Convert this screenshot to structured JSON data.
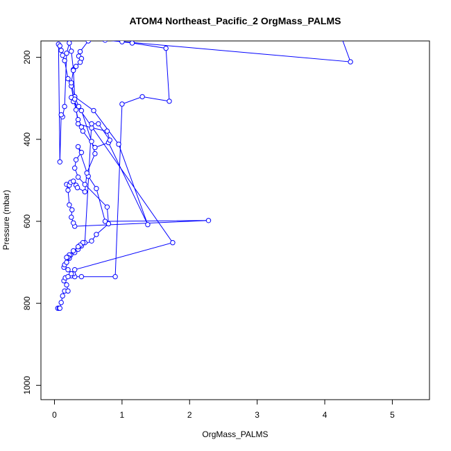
{
  "chart_data": {
    "type": "line",
    "title": "ATOM4 Northeast_Pacific_2 OrgMass_PALMS",
    "xlabel": "OrgMass_PALMS",
    "ylabel": "Pressure (mbar)",
    "xlim": [
      -0.2,
      5.55
    ],
    "ylim": [
      1035,
      160
    ],
    "y_reversed": true,
    "x_ticks": [
      0,
      1,
      2,
      3,
      4,
      5
    ],
    "y_ticks": [
      200,
      400,
      600,
      800,
      1000
    ],
    "grid": false,
    "legend": "none",
    "series": [
      {
        "color": "#0000ff",
        "marker": "open-circle",
        "x": [
          0.05,
          0.07,
          0.08,
          0.1,
          0.12,
          0.15,
          0.2,
          0.18,
          0.14,
          0.16,
          0.25,
          0.3,
          0.28,
          0.2,
          0.14,
          0.15,
          0.18,
          0.22,
          0.24,
          0.3,
          0.35,
          0.4,
          0.55,
          0.62,
          0.8,
          0.78,
          0.45,
          0.35,
          0.3,
          0.32,
          0.4,
          0.35,
          0.5,
          0.62,
          0.75,
          2.28,
          0.3,
          0.28,
          0.25,
          0.26,
          0.22,
          0.2,
          0.18,
          0.22,
          0.24,
          0.28,
          0.32,
          0.34,
          0.45,
          0.48,
          0.6,
          0.55,
          0.4,
          0.36,
          0.3,
          0.28,
          0.25,
          0.22,
          0.18,
          0.15,
          0.12,
          0.1,
          0.08,
          0.06,
          0.08,
          0.1,
          0.12,
          0.15,
          0.2,
          0.25,
          0.28,
          0.32,
          0.35,
          0.4,
          0.42,
          0.6,
          0.8,
          1.38,
          0.95,
          0.58,
          0.3,
          0.28,
          0.25,
          1.75,
          0.3,
          0.25,
          0.2,
          0.4,
          0.9,
          1.0,
          1.3,
          1.7,
          1.65,
          1.15,
          1.0,
          0.75,
          4.38,
          4.25,
          0.7,
          0.5,
          0.38,
          0.36,
          0.4,
          0.38,
          0.32,
          0.28,
          0.25,
          0.3,
          0.35,
          0.55,
          0.78,
          0.82,
          0.65,
          0.55,
          0.45,
          0.42,
          0.38,
          0.35,
          0.28,
          0.22,
          0.2,
          0.18
        ],
        "y": [
          812,
          812,
          812,
          798,
          782,
          770,
          770,
          755,
          745,
          738,
          733,
          735,
          728,
          718,
          712,
          706,
          700,
          690,
          682,
          676,
          668,
          660,
          648,
          632,
          606,
          565,
          510,
          492,
          470,
          450,
          432,
          418,
          490,
          520,
          600,
          598,
          612,
          604,
          590,
          572,
          560,
          524,
          510,
          512,
          505,
          502,
          512,
          518,
          528,
          482,
          435,
          405,
          330,
          320,
          296,
          230,
          185,
          165,
          190,
          320,
          345,
          340,
          455,
          168,
          172,
          183,
          195,
          208,
          252,
          270,
          300,
          328,
          352,
          370,
          380,
          420,
          408,
          608,
          412,
          330,
          296,
          308,
          298,
          652,
          718,
          728,
          735,
          735,
          735,
          314,
          296,
          307,
          178,
          165,
          162,
          158,
          211,
          152,
          154,
          160,
          186,
          197,
          203,
          212,
          222,
          232,
          262,
          302,
          362,
          372,
          380,
          402,
          362,
          362,
          652,
          652,
          658,
          662,
          672,
          682,
          688,
          688
        ]
      }
    ]
  }
}
